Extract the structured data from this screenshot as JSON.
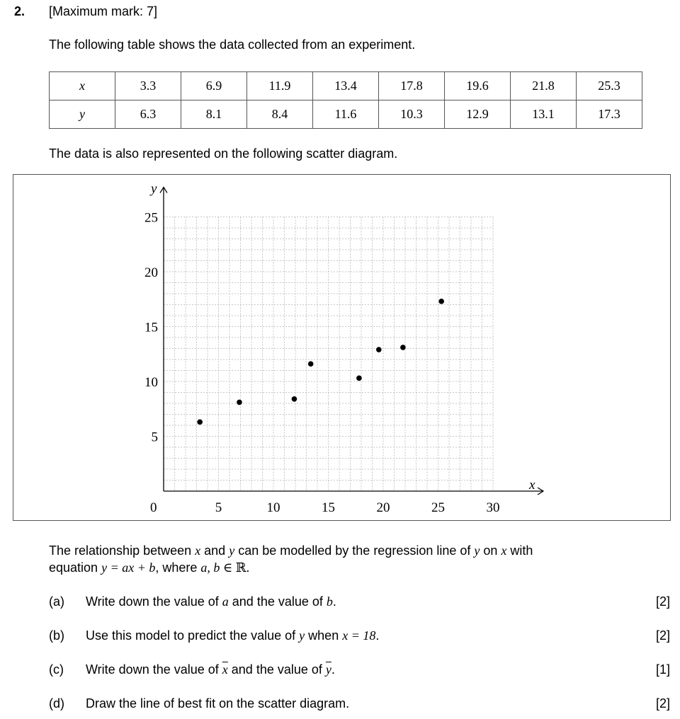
{
  "question": {
    "number": "2.",
    "max_mark": "[Maximum mark: 7]",
    "intro": "The following table shows the data collected from an experiment.",
    "table": {
      "row_labels": [
        "x",
        "y"
      ],
      "x_values": [
        "3.3",
        "6.9",
        "11.9",
        "13.4",
        "17.8",
        "19.6",
        "21.8",
        "25.3"
      ],
      "y_values": [
        "6.3",
        "8.1",
        "8.4",
        "11.6",
        "10.3",
        "12.9",
        "13.1",
        "17.3"
      ]
    },
    "scatter_intro": "The data is also represented on the following scatter diagram.",
    "relation_line1_a": "The relationship between ",
    "relation_x": "x",
    "relation_line1_b": " and ",
    "relation_y": "y",
    "relation_line1_c": " can be modelled by the regression line of ",
    "relation_y2": "y",
    "relation_line1_d": " on ",
    "relation_x2": "x",
    "relation_line1_e": " with",
    "relation_line2_a": "equation ",
    "relation_equation": "y = ax + b",
    "relation_line2_b": ", where ",
    "relation_ab": "a, b",
    "relation_line2_c": " ∈ ℝ.",
    "parts": [
      {
        "label": "(a)",
        "text_a": "Write down the value of ",
        "v1": "a",
        "text_b": " and the value of ",
        "v2": "b",
        "text_c": ".",
        "marks": "[2]"
      },
      {
        "label": "(b)",
        "text_a": "Use this model to predict the value of ",
        "v1": "y",
        "text_b": " when ",
        "v2": "x = 18",
        "text_c": ".",
        "marks": "[2]"
      },
      {
        "label": "(c)",
        "text_a": "Write down the value of ",
        "v1": "x",
        "text_b": " and the value of ",
        "v2": "y",
        "text_c": ".",
        "marks": "[1]"
      },
      {
        "label": "(d)",
        "text_a": "Draw the line of best fit on the scatter diagram.",
        "v1": "",
        "text_b": "",
        "v2": "",
        "text_c": "",
        "marks": "[2]"
      }
    ]
  },
  "chart_data": {
    "type": "scatter",
    "xlabel": "x",
    "ylabel": "y",
    "xlim": [
      0,
      30
    ],
    "ylim": [
      0,
      25
    ],
    "x_ticks": [
      "5",
      "10",
      "15",
      "20",
      "25",
      "30"
    ],
    "y_ticks": [
      "5",
      "10",
      "15",
      "20",
      "25"
    ],
    "origin_label": "0",
    "grid": true,
    "x": [
      3.3,
      6.9,
      11.9,
      13.4,
      17.8,
      19.6,
      21.8,
      25.3
    ],
    "y": [
      6.3,
      8.1,
      8.4,
      11.6,
      10.3,
      12.9,
      13.1,
      17.3
    ]
  }
}
